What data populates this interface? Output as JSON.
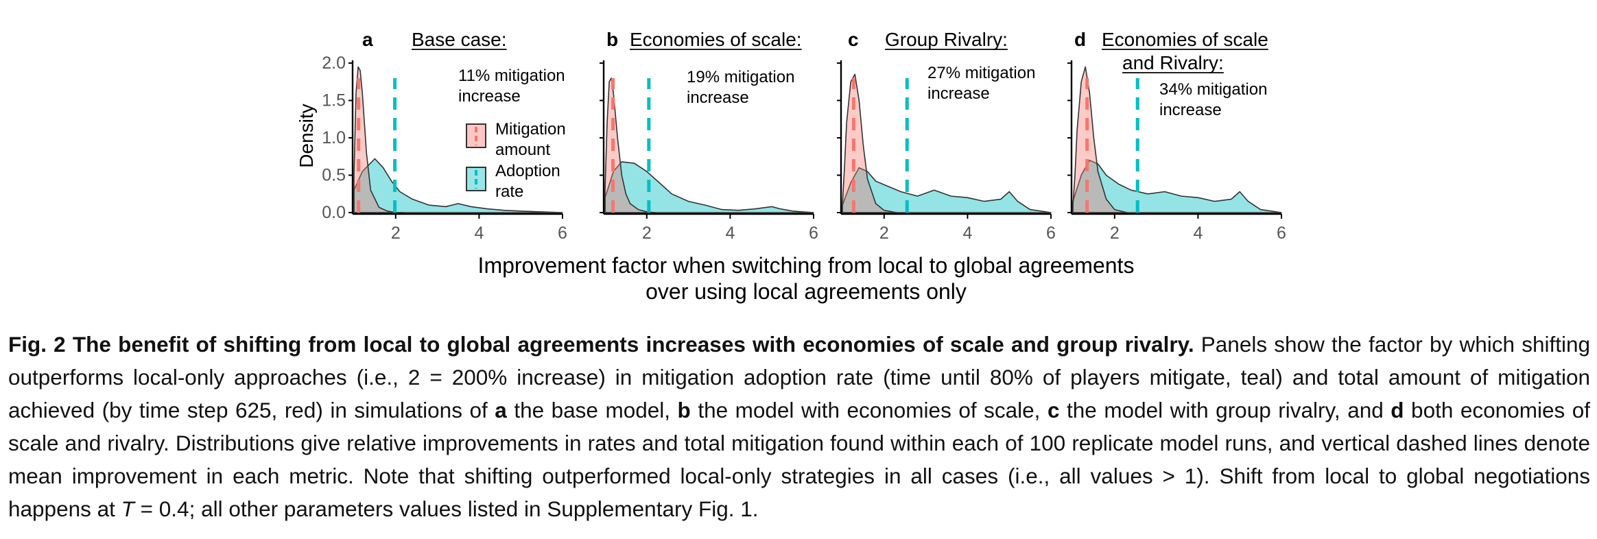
{
  "figure": {
    "xlabel_line1": "Improvement factor when switching from local to global agreements",
    "xlabel_line2": "over using local agreements only",
    "ylabel": "Density",
    "legend": {
      "mitigation_line1": "Mitigation",
      "mitigation_line2": "amount",
      "adoption_line1": "Adoption",
      "adoption_line2": "rate"
    }
  },
  "chart_data": [
    {
      "type": "area",
      "panel": "a",
      "title": "Base case:",
      "title_lines": [
        "Base case:"
      ],
      "note_lines": [
        "11% mitigation",
        "increase"
      ],
      "xlabel": "Improvement factor when switching from local to global agreements over using local agreements only",
      "ylabel": "Density",
      "xlim": [
        1,
        6
      ],
      "ylim": [
        0,
        2.0
      ],
      "xticks": [
        "2",
        "4",
        "6"
      ],
      "yticks": [
        "0.0",
        "0.5",
        "1.0",
        "1.5",
        "2.0"
      ],
      "series": [
        {
          "name": "Mitigation amount",
          "color": "#F8766D",
          "mean": 1.11,
          "x": [
            1.0,
            1.05,
            1.1,
            1.15,
            1.2,
            1.3,
            1.4,
            1.6,
            1.8,
            2.0,
            2.2
          ],
          "y": [
            0.5,
            1.6,
            1.95,
            1.9,
            1.6,
            0.8,
            0.3,
            0.07,
            0.02,
            0.0,
            0.0
          ]
        },
        {
          "name": "Adoption rate",
          "color": "#00BFC4",
          "mean": 1.98,
          "x": [
            1.0,
            1.2,
            1.5,
            1.7,
            1.9,
            2.1,
            2.4,
            2.8,
            3.2,
            3.5,
            3.8,
            4.2,
            4.6,
            5.0,
            5.5,
            6.0
          ],
          "y": [
            0.3,
            0.55,
            0.72,
            0.6,
            0.42,
            0.28,
            0.18,
            0.1,
            0.08,
            0.12,
            0.08,
            0.05,
            0.03,
            0.02,
            0.01,
            0.0
          ]
        }
      ]
    },
    {
      "type": "area",
      "panel": "b",
      "title": "Economies of scale:",
      "title_lines": [
        "Economies of scale:"
      ],
      "note_lines": [
        "19% mitigation",
        "increase"
      ],
      "xlabel": "Improvement factor when switching from local to global agreements over using local agreements only",
      "ylabel": "Density",
      "xlim": [
        1,
        6
      ],
      "ylim": [
        0,
        2.0
      ],
      "xticks": [
        "2",
        "4",
        "6"
      ],
      "yticks": [],
      "series": [
        {
          "name": "Mitigation amount",
          "color": "#F8766D",
          "mean": 1.19,
          "x": [
            1.0,
            1.05,
            1.1,
            1.15,
            1.2,
            1.3,
            1.4,
            1.5,
            1.6,
            1.8,
            2.0,
            2.2
          ],
          "y": [
            0.3,
            1.2,
            1.75,
            1.8,
            1.6,
            1.0,
            0.5,
            0.25,
            0.12,
            0.04,
            0.01,
            0.0
          ]
        },
        {
          "name": "Adoption rate",
          "color": "#00BFC4",
          "mean": 2.05,
          "x": [
            1.0,
            1.2,
            1.4,
            1.7,
            2.0,
            2.3,
            2.6,
            3.0,
            3.4,
            3.8,
            4.2,
            4.6,
            5.0,
            5.2,
            5.5,
            6.0
          ],
          "y": [
            0.2,
            0.55,
            0.68,
            0.66,
            0.55,
            0.4,
            0.25,
            0.15,
            0.1,
            0.04,
            0.03,
            0.05,
            0.08,
            0.05,
            0.02,
            0.0
          ]
        }
      ]
    },
    {
      "type": "area",
      "panel": "c",
      "title": "Group Rivalry:",
      "title_lines": [
        "Group Rivalry:"
      ],
      "note_lines": [
        "27% mitigation",
        "increase"
      ],
      "xlabel": "Improvement factor when switching from local to global agreements over using local agreements only",
      "ylabel": "Density",
      "xlim": [
        1,
        6
      ],
      "ylim": [
        0,
        2.0
      ],
      "xticks": [
        "2",
        "4",
        "6"
      ],
      "yticks": [],
      "series": [
        {
          "name": "Mitigation amount",
          "color": "#F8766D",
          "mean": 1.27,
          "x": [
            1.0,
            1.05,
            1.1,
            1.2,
            1.3,
            1.4,
            1.5,
            1.6,
            1.8,
            2.0,
            2.3
          ],
          "y": [
            0.1,
            0.6,
            1.2,
            1.75,
            1.85,
            1.5,
            0.9,
            0.45,
            0.12,
            0.03,
            0.0
          ]
        },
        {
          "name": "Adoption rate",
          "color": "#00BFC4",
          "mean": 2.55,
          "x": [
            1.0,
            1.2,
            1.4,
            1.6,
            1.8,
            2.1,
            2.4,
            2.8,
            3.2,
            3.6,
            4.0,
            4.4,
            4.8,
            5.0,
            5.2,
            5.5,
            6.0
          ],
          "y": [
            0.1,
            0.4,
            0.6,
            0.55,
            0.42,
            0.35,
            0.28,
            0.22,
            0.3,
            0.22,
            0.2,
            0.15,
            0.18,
            0.28,
            0.15,
            0.04,
            0.0
          ]
        }
      ]
    },
    {
      "type": "area",
      "panel": "d",
      "title": "Economies of scale and Rivalry:",
      "title_lines": [
        "Economies of scale",
        "and Rivalry:"
      ],
      "note_lines": [
        "34% mitigation",
        "increase"
      ],
      "xlabel": "Improvement factor when switching from local to global agreements over using local agreements only",
      "ylabel": "Density",
      "xlim": [
        1,
        6
      ],
      "ylim": [
        0,
        2.0
      ],
      "xticks": [
        "2",
        "4",
        "6"
      ],
      "yticks": [],
      "series": [
        {
          "name": "Mitigation amount",
          "color": "#F8766D",
          "mean": 1.34,
          "x": [
            1.0,
            1.05,
            1.1,
            1.2,
            1.3,
            1.4,
            1.5,
            1.6,
            1.8,
            2.0,
            2.3
          ],
          "y": [
            0.1,
            0.5,
            1.1,
            1.75,
            1.95,
            1.6,
            1.0,
            0.55,
            0.18,
            0.04,
            0.0
          ]
        },
        {
          "name": "Adoption rate",
          "color": "#00BFC4",
          "mean": 2.55,
          "x": [
            1.0,
            1.2,
            1.4,
            1.6,
            1.8,
            2.1,
            2.4,
            2.8,
            3.2,
            3.6,
            4.0,
            4.4,
            4.8,
            5.0,
            5.2,
            5.5,
            6.0
          ],
          "y": [
            0.15,
            0.5,
            0.7,
            0.65,
            0.5,
            0.38,
            0.3,
            0.25,
            0.28,
            0.22,
            0.2,
            0.15,
            0.18,
            0.28,
            0.15,
            0.04,
            0.0
          ]
        }
      ]
    }
  ],
  "caption": {
    "lead": "Fig. 2 The benefit of shifting from local to global agreements increases with economies of scale and group rivalry.",
    "t1": " Panels show the factor by which shifting outperforms local-only approaches (i.e., 2 = 200% increase) in mitigation adoption rate (time until 80% of players mitigate, teal) and total amount of mitigation achieved (by time step 625, red) in simulations of ",
    "a": "a",
    "t2": " the base model, ",
    "b": "b",
    "t3": " the model with economies of scale, ",
    "c": "c",
    "t4": " the model with group rivalry, and ",
    "d": "d",
    "t5": " both economies of scale and rivalry. Distributions give relative improvements in rates and total mitigation found within each of 100 replicate model runs, and vertical dashed lines denote mean improvement in each metric. Note that shifting outperformed local-only strategies in all cases (i.e., all values > 1). Shift from local to global negotiations happens at ",
    "T": "T",
    "t6": " = 0.4; all other parameters values listed in Supplementary Fig. 1."
  }
}
